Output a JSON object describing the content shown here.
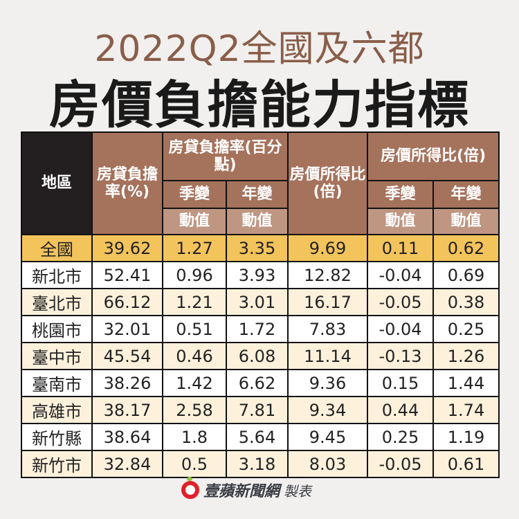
{
  "title": {
    "line1": "2022Q2全國及六都",
    "line2": "房價負擔能力指標"
  },
  "header": {
    "region": "地區",
    "mortgage_burden": "房貸負擔率(%)",
    "mortgage_change_group": "房貸負擔率(百分點)",
    "price_income": "房價所得比(倍)",
    "price_income_change_group": "房價所得比(倍)",
    "qoq": "季變",
    "yoy": "年變",
    "change_value": "動值"
  },
  "rows": [
    {
      "region": "全國",
      "burden": "39.62",
      "burden_qoq": "1.27",
      "burden_yoy": "3.35",
      "ratio": "9.69",
      "ratio_qoq": "0.11",
      "ratio_yoy": "0.62"
    },
    {
      "region": "新北市",
      "burden": "52.41",
      "burden_qoq": "0.96",
      "burden_yoy": "3.93",
      "ratio": "12.82",
      "ratio_qoq": "-0.04",
      "ratio_yoy": "0.69"
    },
    {
      "region": "臺北市",
      "burden": "66.12",
      "burden_qoq": "1.21",
      "burden_yoy": "3.01",
      "ratio": "16.17",
      "ratio_qoq": "-0.05",
      "ratio_yoy": "0.38"
    },
    {
      "region": "桃園市",
      "burden": "32.01",
      "burden_qoq": "0.51",
      "burden_yoy": "1.72",
      "ratio": "7.83",
      "ratio_qoq": "-0.04",
      "ratio_yoy": "0.25"
    },
    {
      "region": "臺中市",
      "burden": "45.54",
      "burden_qoq": "0.46",
      "burden_yoy": "6.08",
      "ratio": "11.14",
      "ratio_qoq": "-0.13",
      "ratio_yoy": "1.26"
    },
    {
      "region": "臺南市",
      "burden": "38.26",
      "burden_qoq": "1.42",
      "burden_yoy": "6.62",
      "ratio": "9.36",
      "ratio_qoq": "0.15",
      "ratio_yoy": "1.44"
    },
    {
      "region": "高雄市",
      "burden": "38.17",
      "burden_qoq": "2.58",
      "burden_yoy": "7.81",
      "ratio": "9.34",
      "ratio_qoq": "0.44",
      "ratio_yoy": "1.74"
    },
    {
      "region": "新竹縣",
      "burden": "38.64",
      "burden_qoq": "1.8",
      "burden_yoy": "5.64",
      "ratio": "9.45",
      "ratio_qoq": "0.25",
      "ratio_yoy": "1.19"
    },
    {
      "region": "新竹市",
      "burden": "32.84",
      "burden_qoq": "0.5",
      "burden_yoy": "3.18",
      "ratio": "8.03",
      "ratio_qoq": "-0.05",
      "ratio_yoy": "0.61"
    }
  ],
  "footer": {
    "brand": "壹蘋新聞網",
    "made_by": "製表"
  },
  "colors": {
    "header": "#a5725c",
    "header_light": "#bf9682",
    "header_dark": "#231f20",
    "national_row": "#f3c35c",
    "alt_row": "#fdf1dc",
    "title": "#8a5e4a"
  }
}
